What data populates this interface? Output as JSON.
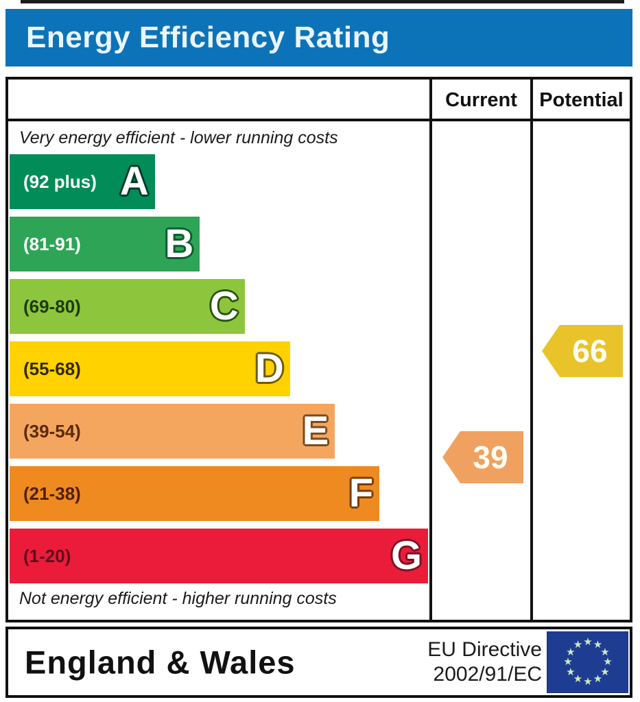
{
  "title_bar": {
    "title": "Energy Efficiency Rating"
  },
  "columns": {
    "current": "Current",
    "potential": "Potential"
  },
  "footer": {
    "region": "England & Wales",
    "directive_line1": "EU Directive",
    "directive_line2": "2002/91/EC",
    "flag": {
      "name": "eu-flag",
      "stars": 12,
      "background": "#1e3d92",
      "star_color": "#cfe9c0"
    }
  },
  "colors": {
    "header_blue": "#0d73b9",
    "border": "#111111"
  },
  "chart_data": {
    "type": "bar",
    "title": "Energy Efficiency Rating",
    "orientation": "horizontal",
    "scale": {
      "min": 1,
      "max": 100
    },
    "annotations": {
      "top": "Very energy efficient - lower running costs",
      "bottom": "Not energy efficient - higher running costs"
    },
    "categories": [
      "A",
      "B",
      "C",
      "D",
      "E",
      "F",
      "G"
    ],
    "bands": [
      {
        "letter": "A",
        "range_label": "(92 plus)",
        "min": 92,
        "max": 100,
        "color": "#018c58",
        "label_color": "#ffffff",
        "outline_color": "#05382a",
        "width_pct": 34.6
      },
      {
        "letter": "B",
        "range_label": "(81-91)",
        "min": 81,
        "max": 91,
        "color": "#2ea556",
        "label_color": "#ffffff",
        "outline_color": "#0b5c2e",
        "width_pct": 45.3
      },
      {
        "letter": "C",
        "range_label": "(69-80)",
        "min": 69,
        "max": 80,
        "color": "#8dc63c",
        "label_color": "#1d3a0e",
        "outline_color": "#28530b",
        "width_pct": 56.0
      },
      {
        "letter": "D",
        "range_label": "(55-68)",
        "min": 55,
        "max": 68,
        "color": "#ffd200",
        "label_color": "#322800",
        "outline_color": "#6d5a00",
        "width_pct": 66.8
      },
      {
        "letter": "E",
        "range_label": "(39-54)",
        "min": 39,
        "max": 54,
        "color": "#f4a65e",
        "label_color": "#5b2a08",
        "outline_color": "#7c4a1d",
        "width_pct": 77.5
      },
      {
        "letter": "F",
        "range_label": "(21-38)",
        "min": 21,
        "max": 38,
        "color": "#ef8a21",
        "label_color": "#4f2003",
        "outline_color": "#7a3c00",
        "width_pct": 88.1
      },
      {
        "letter": "G",
        "range_label": "(1-20)",
        "min": 1,
        "max": 20,
        "color": "#ea1c3a",
        "label_color": "#5f0c1a",
        "outline_color": "#7c1022",
        "width_pct": 99.7
      }
    ],
    "current": {
      "value": 39,
      "band": "E",
      "color": "#f0a160"
    },
    "potential": {
      "value": 66,
      "band": "D",
      "color": "#e9c32a"
    }
  }
}
